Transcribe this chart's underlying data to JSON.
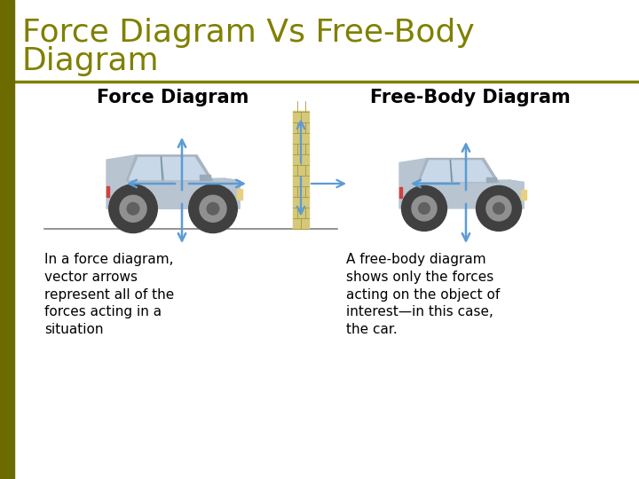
{
  "title_line1": "Force Diagram Vs Free-Body",
  "title_line2": "Diagram",
  "title_color": "#808000",
  "title_fontsize": 26,
  "bg_color": "#ffffff",
  "sidebar_color": "#6B6B00",
  "divider_color": "#808000",
  "left_header": "Force Diagram",
  "right_header": "Free-Body Diagram",
  "header_fontsize": 15,
  "left_text": "In a force diagram,\nvector arrows\nrepresent all of the\nforces acting in a\nsituation",
  "right_text": "A free-body diagram\nshows only the forces\nacting on the object of\ninterest—in this case,\nthe car.",
  "body_fontsize": 11,
  "arrow_color": "#5B9BD5",
  "wall_color": "#D4C87A",
  "ground_color": "#808080",
  "car_body_color": "#B8C4D0",
  "car_roof_color": "#A8B4C0",
  "car_window_color": "#C8D8E8",
  "car_wheel_color": "#404040",
  "car_hub_color": "#909090"
}
